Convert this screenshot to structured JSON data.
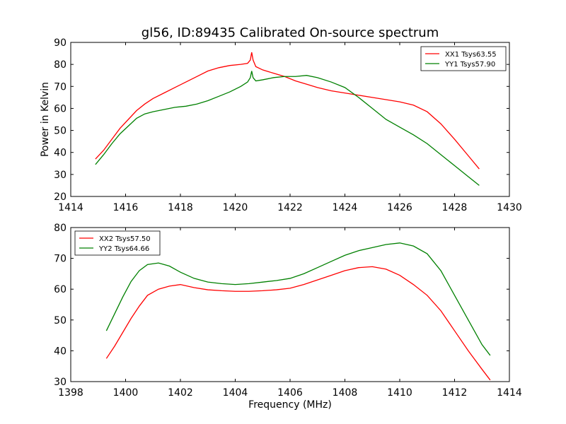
{
  "chart_data": {
    "title": "gl56, ID:89435 Calibrated On-source spectrum",
    "ylabel": "Power in Kelvin",
    "xlabel": "Frequency (MHz)",
    "panels": [
      {
        "type": "line",
        "xlim": [
          1414,
          1430
        ],
        "ylim": [
          20,
          90
        ],
        "xticks": [
          1414,
          1416,
          1418,
          1420,
          1422,
          1424,
          1426,
          1428,
          1430
        ],
        "yticks": [
          20,
          30,
          40,
          50,
          60,
          70,
          80,
          90
        ],
        "legend_position": "upper-right",
        "series": [
          {
            "name": "XX1 Tsys63.55",
            "color": "#ff0000",
            "x": [
              1414.9,
              1415.2,
              1415.5,
              1415.8,
              1416.1,
              1416.4,
              1416.7,
              1417.0,
              1417.4,
              1417.8,
              1418.2,
              1418.6,
              1419.0,
              1419.4,
              1419.8,
              1420.2,
              1420.45,
              1420.55,
              1420.6,
              1420.65,
              1420.75,
              1421.0,
              1421.4,
              1421.8,
              1422.2,
              1422.6,
              1423.0,
              1423.5,
              1424.0,
              1424.5,
              1425.0,
              1425.5,
              1426.0,
              1426.5,
              1427.0,
              1427.5,
              1428.0,
              1428.5,
              1428.9
            ],
            "y": [
              37,
              41,
              46,
              51,
              55,
              59,
              62,
              64.5,
              67,
              69.5,
              72,
              74.5,
              77,
              78.5,
              79.5,
              80,
              80.5,
              82,
              85.5,
              82,
              79,
              77.5,
              76,
              74.5,
              72.5,
              71,
              69.5,
              68,
              67,
              66,
              65,
              64,
              63,
              61.5,
              58.5,
              53,
              46,
              38.5,
              32.5
            ]
          },
          {
            "name": "YY1 Tsys57.90",
            "color": "#008000",
            "x": [
              1414.9,
              1415.2,
              1415.5,
              1415.8,
              1416.1,
              1416.4,
              1416.7,
              1417.0,
              1417.4,
              1417.8,
              1418.2,
              1418.6,
              1419.0,
              1419.4,
              1419.8,
              1420.2,
              1420.45,
              1420.55,
              1420.6,
              1420.65,
              1420.75,
              1421.0,
              1421.4,
              1421.8,
              1422.2,
              1422.6,
              1423.0,
              1423.5,
              1424.0,
              1424.5,
              1425.0,
              1425.5,
              1426.0,
              1426.5,
              1427.0,
              1427.5,
              1428.0,
              1428.5,
              1428.9
            ],
            "y": [
              34.5,
              39,
              44,
              48.5,
              52,
              55.5,
              57.5,
              58.5,
              59.5,
              60.5,
              61,
              62,
              63.5,
              65.5,
              67.5,
              70,
              72,
              74,
              77,
              74,
              72.5,
              73,
              74,
              74.5,
              74.5,
              75,
              74,
              72,
              69.5,
              65,
              60,
              55,
              51.5,
              48,
              44,
              39,
              34,
              29,
              25
            ]
          }
        ]
      },
      {
        "type": "line",
        "xlim": [
          1398,
          1414
        ],
        "ylim": [
          30,
          80
        ],
        "xticks": [
          1398,
          1400,
          1402,
          1404,
          1406,
          1408,
          1410,
          1412,
          1414
        ],
        "yticks": [
          30,
          40,
          50,
          60,
          70,
          80
        ],
        "legend_position": "upper-left",
        "series": [
          {
            "name": "XX2 Tsys57.50",
            "color": "#ff0000",
            "x": [
              1399.3,
              1399.6,
              1399.9,
              1400.2,
              1400.5,
              1400.8,
              1401.2,
              1401.6,
              1402.0,
              1402.5,
              1403.0,
              1403.5,
              1404.0,
              1404.5,
              1405.0,
              1405.5,
              1406.0,
              1406.5,
              1407.0,
              1407.5,
              1408.0,
              1408.5,
              1409.0,
              1409.5,
              1410.0,
              1410.5,
              1411.0,
              1411.5,
              1412.0,
              1412.5,
              1413.0,
              1413.3
            ],
            "y": [
              37.5,
              41.5,
              46,
              50.5,
              54.5,
              58,
              60,
              61,
              61.5,
              60.5,
              59.8,
              59.5,
              59.3,
              59.3,
              59.5,
              59.8,
              60.3,
              61.5,
              63,
              64.5,
              66,
              67,
              67.3,
              66.5,
              64.5,
              61.5,
              58,
              53,
              46.5,
              40,
              34,
              30.5
            ]
          },
          {
            "name": "YY2 Tsys64.66",
            "color": "#008000",
            "x": [
              1399.3,
              1399.6,
              1399.9,
              1400.2,
              1400.5,
              1400.8,
              1401.2,
              1401.6,
              1402.0,
              1402.5,
              1403.0,
              1403.5,
              1404.0,
              1404.5,
              1405.0,
              1405.5,
              1406.0,
              1406.5,
              1407.0,
              1407.5,
              1408.0,
              1408.5,
              1409.0,
              1409.5,
              1410.0,
              1410.5,
              1411.0,
              1411.5,
              1412.0,
              1412.5,
              1413.0,
              1413.3
            ],
            "y": [
              46.5,
              52,
              57.5,
              62.5,
              66,
              68,
              68.5,
              67.5,
              65.5,
              63.5,
              62.3,
              61.8,
              61.5,
              61.8,
              62.3,
              62.8,
              63.5,
              65,
              67,
              69,
              71,
              72.5,
              73.5,
              74.5,
              75,
              74,
              71.5,
              66,
              58,
              50,
              42,
              38.5
            ]
          }
        ]
      }
    ]
  }
}
